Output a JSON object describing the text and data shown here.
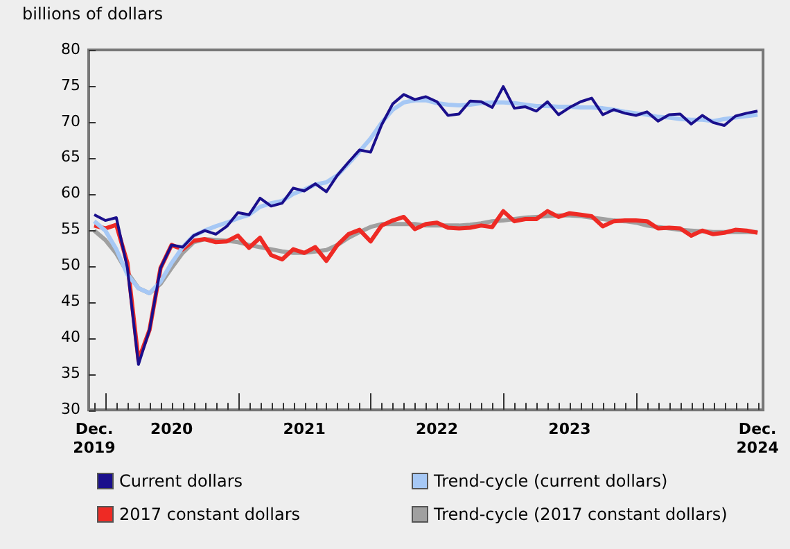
{
  "chart_data": {
    "type": "line",
    "ylabel": "billions of dollars",
    "categories": [
      "Dec. 2019",
      null,
      null,
      null,
      null,
      null,
      null,
      "2020",
      null,
      null,
      null,
      null,
      null,
      null,
      null,
      null,
      null,
      null,
      null,
      "2021",
      null,
      null,
      null,
      null,
      null,
      null,
      null,
      null,
      null,
      null,
      null,
      "2022",
      null,
      null,
      null,
      null,
      null,
      null,
      null,
      null,
      null,
      null,
      null,
      "2023",
      null,
      null,
      null,
      null,
      null,
      null,
      null,
      null,
      null,
      null,
      null,
      null,
      null,
      null,
      null,
      null,
      "Dec. 2024"
    ],
    "series": [
      {
        "name": "Current dollars",
        "color": "#1a0f8c",
        "values": [
          57.1,
          56.3,
          56.7,
          49.7,
          36.3,
          41.1,
          49.7,
          52.9,
          52.6,
          54.2,
          54.9,
          54.4,
          55.5,
          57.4,
          57.1,
          59.4,
          58.3,
          58.7,
          60.8,
          60.4,
          61.4,
          60.3,
          62.6,
          64.4,
          66.1,
          65.8,
          69.6,
          72.5,
          73.8,
          73.1,
          73.5,
          72.8,
          70.9,
          71.1,
          72.9,
          72.8,
          72.0,
          74.9,
          71.9,
          72.1,
          71.5,
          72.8,
          71.0,
          72.0,
          72.8,
          73.3,
          71.0,
          71.7,
          71.2,
          70.9,
          71.4,
          70.1,
          71.0,
          71.1,
          69.7,
          70.9,
          69.9,
          69.5,
          70.8,
          71.2,
          71.5
        ]
      },
      {
        "name": "Trend-cycle (current dollars)",
        "color": "#a6c8f5",
        "values": [
          56.2,
          54.9,
          52.3,
          48.8,
          46.9,
          46.2,
          47.8,
          50.4,
          52.6,
          54.2,
          54.9,
          55.5,
          56.0,
          56.6,
          57.1,
          58.2,
          58.7,
          59.0,
          60.0,
          60.6,
          61.3,
          61.6,
          62.6,
          64.2,
          65.9,
          67.7,
          69.9,
          71.7,
          72.7,
          73.0,
          73.0,
          72.6,
          72.4,
          72.3,
          72.4,
          72.6,
          72.7,
          72.7,
          72.6,
          72.4,
          72.2,
          72.2,
          72.1,
          72.1,
          72.0,
          72.0,
          71.9,
          71.7,
          71.4,
          71.2,
          71.0,
          70.7,
          70.6,
          70.4,
          70.3,
          70.3,
          70.1,
          70.4,
          70.6,
          70.8,
          71.0
        ]
      },
      {
        "name": "2017 constant dollars",
        "color": "#ee2a24",
        "values": [
          55.6,
          55.2,
          55.7,
          50.4,
          36.9,
          41.1,
          49.7,
          52.9,
          52.3,
          53.5,
          53.7,
          53.3,
          53.4,
          54.2,
          52.5,
          53.9,
          51.5,
          50.9,
          52.3,
          51.8,
          52.6,
          50.7,
          52.9,
          54.4,
          55.0,
          53.4,
          55.6,
          56.3,
          56.8,
          55.1,
          55.8,
          56.0,
          55.3,
          55.2,
          55.3,
          55.6,
          55.4,
          57.6,
          56.2,
          56.5,
          56.5,
          57.6,
          56.8,
          57.3,
          57.1,
          56.9,
          55.5,
          56.2,
          56.3,
          56.3,
          56.2,
          55.2,
          55.3,
          55.2,
          54.2,
          54.9,
          54.4,
          54.6,
          55.0,
          54.9,
          54.6
        ]
      },
      {
        "name": "Trend-cycle (2017 constant dollars)",
        "color": "#a0a0a0",
        "values": [
          54.9,
          53.6,
          51.7,
          49.1,
          46.9,
          46.2,
          47.5,
          49.7,
          51.8,
          53.3,
          53.7,
          53.6,
          53.5,
          53.3,
          52.9,
          52.6,
          52.3,
          52.0,
          51.8,
          51.8,
          52.0,
          52.2,
          52.9,
          53.9,
          54.7,
          55.4,
          55.8,
          55.8,
          55.8,
          55.8,
          55.6,
          55.6,
          55.6,
          55.6,
          55.7,
          55.9,
          56.2,
          56.3,
          56.5,
          56.7,
          56.8,
          56.9,
          57.0,
          57.0,
          56.9,
          56.7,
          56.5,
          56.3,
          56.2,
          56.0,
          55.6,
          55.4,
          55.2,
          55.0,
          54.9,
          54.8,
          54.7,
          54.7,
          54.7,
          54.7,
          54.7
        ]
      }
    ],
    "ylim": [
      30,
      80
    ],
    "yticks": [
      30,
      35,
      40,
      45,
      50,
      55,
      60,
      65,
      70,
      75,
      80
    ],
    "legend": "bottom",
    "marker": "none",
    "line_style": "solid"
  }
}
